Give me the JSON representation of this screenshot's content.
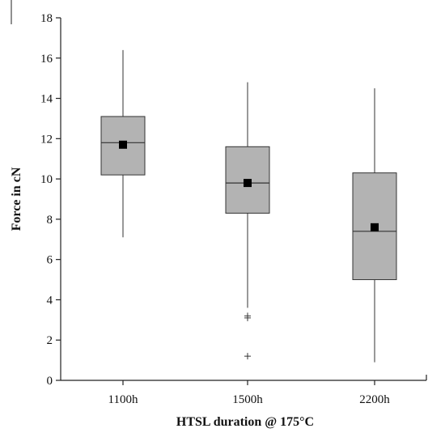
{
  "chart_data": {
    "type": "box",
    "title": "",
    "xlabel": "HTSL duration @ 175°C",
    "ylabel": "Force in cN",
    "ylim": [
      0,
      18
    ],
    "yticks": [
      0,
      2,
      4,
      6,
      8,
      10,
      12,
      14,
      16,
      18
    ],
    "grid": false,
    "legend": "none",
    "colors": {
      "box_fill": "#b3b3b3",
      "line": "#333333",
      "mean_marker": "#000000"
    },
    "categories": [
      "1100h",
      "1500h",
      "2200h"
    ],
    "series": [
      {
        "category": "1100h",
        "whisker_low": 7.1,
        "q1": 10.2,
        "median": 11.8,
        "q3": 13.1,
        "whisker_high": 16.4,
        "mean": 11.7,
        "outliers": []
      },
      {
        "category": "1500h",
        "whisker_low": 3.6,
        "q1": 8.3,
        "median": 9.8,
        "q3": 11.6,
        "whisker_high": 14.8,
        "mean": 9.8,
        "outliers": [
          3.2,
          3.1,
          1.2
        ]
      },
      {
        "category": "2200h",
        "whisker_low": 0.9,
        "q1": 5.0,
        "median": 7.4,
        "q3": 10.3,
        "whisker_high": 14.5,
        "mean": 7.6,
        "outliers": []
      }
    ]
  }
}
